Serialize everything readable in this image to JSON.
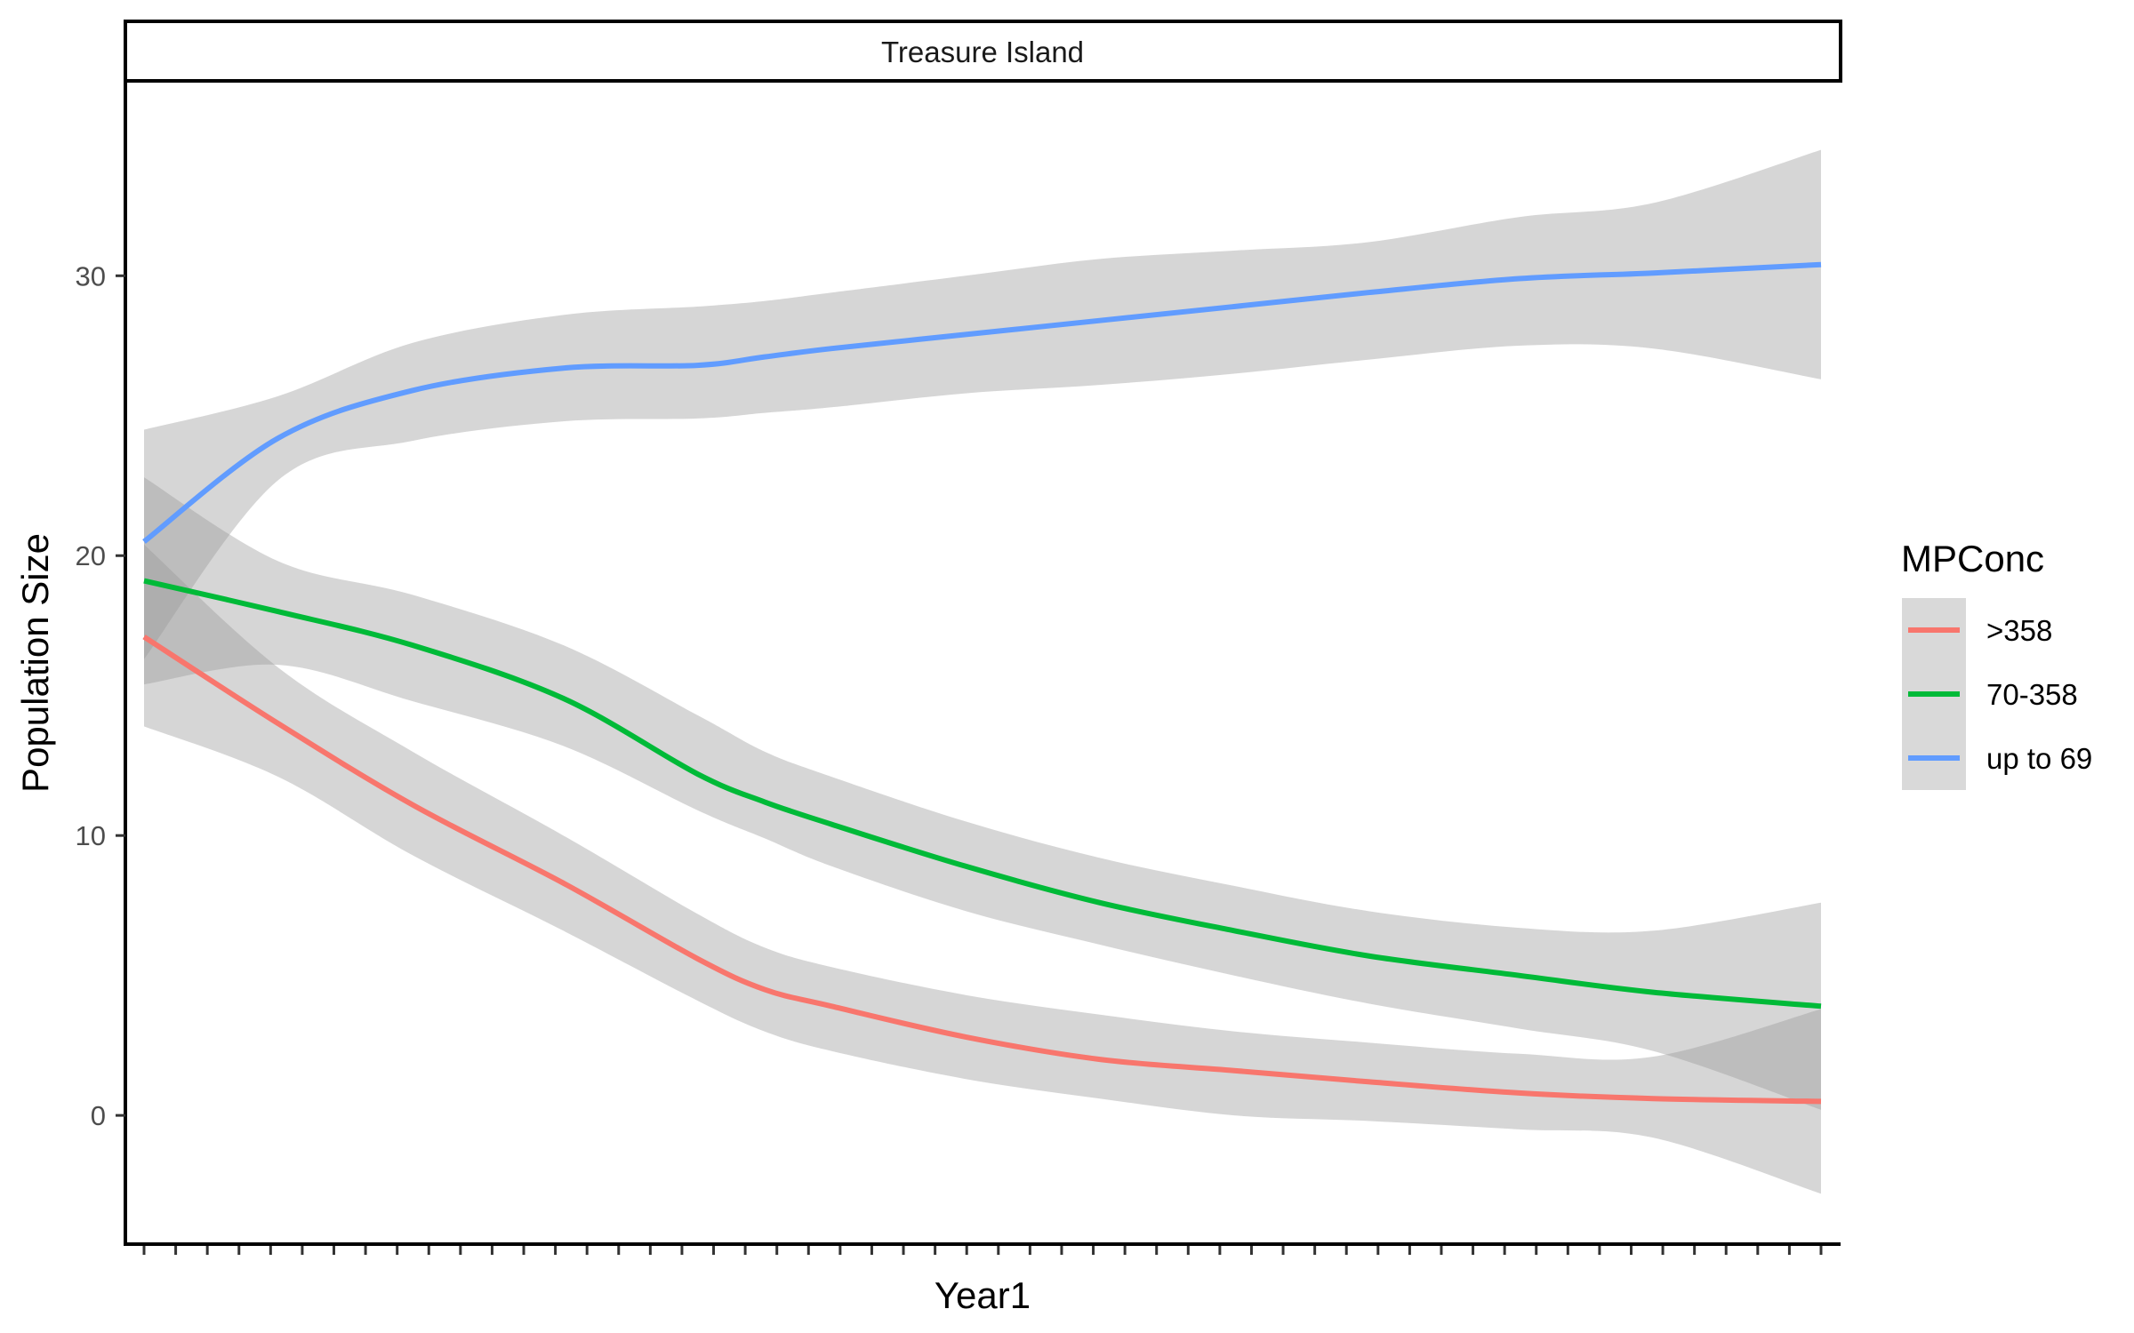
{
  "chart_data": {
    "type": "line",
    "facet_title": "Treasure Island",
    "xlabel": "Year1",
    "ylabel": "Population Size",
    "ylim": [
      -4.6,
      36.9
    ],
    "yticks": [
      0,
      10,
      20,
      30
    ],
    "x_tick_count": 54,
    "grid": false,
    "legend": {
      "title": "MPConc",
      "position": "right"
    },
    "smoothing": "loess with grey confidence band",
    "x": [
      0,
      0.08,
      0.16,
      0.25,
      0.33,
      0.37,
      0.41,
      0.49,
      0.57,
      0.65,
      0.73,
      0.82,
      0.9,
      1.0
    ],
    "series": [
      {
        "name": ">358",
        "color": "#F8766D",
        "values": [
          17.1,
          14.0,
          11.1,
          8.3,
          5.6,
          4.5,
          3.9,
          2.8,
          2.0,
          1.6,
          1.2,
          0.8,
          0.6,
          0.5
        ],
        "ci_lower": [
          13.9,
          12.1,
          9.3,
          6.6,
          4.1,
          3.0,
          2.3,
          1.3,
          0.6,
          0.0,
          -0.2,
          -0.5,
          -0.8,
          -2.8
        ],
        "ci_upper": [
          20.4,
          16.0,
          13.0,
          10.0,
          7.2,
          6.0,
          5.3,
          4.3,
          3.6,
          3.0,
          2.6,
          2.2,
          2.1,
          3.8
        ]
      },
      {
        "name": "70-358",
        "color": "#00BA38",
        "values": [
          19.1,
          18.0,
          16.8,
          14.9,
          12.2,
          11.2,
          10.4,
          8.9,
          7.6,
          6.6,
          5.7,
          5.0,
          4.4,
          3.9
        ],
        "ci_lower": [
          15.4,
          16.1,
          14.8,
          13.2,
          10.9,
          9.9,
          8.9,
          7.3,
          6.1,
          5.0,
          4.0,
          3.1,
          2.3,
          0.2
        ],
        "ci_upper": [
          22.8,
          19.8,
          18.6,
          16.8,
          14.3,
          13.0,
          12.1,
          10.5,
          9.2,
          8.2,
          7.3,
          6.7,
          6.6,
          7.6
        ]
      },
      {
        "name": "up to 69",
        "color": "#619CFF",
        "values": [
          20.5,
          24.2,
          25.9,
          26.7,
          26.8,
          27.1,
          27.4,
          27.9,
          28.4,
          28.9,
          29.4,
          29.9,
          30.1,
          30.4
        ],
        "ci_lower": [
          16.3,
          22.7,
          24.1,
          24.8,
          24.9,
          25.1,
          25.3,
          25.8,
          26.1,
          26.5,
          27.0,
          27.5,
          27.4,
          26.3
        ],
        "ci_upper": [
          24.5,
          25.7,
          27.6,
          28.6,
          28.9,
          29.1,
          29.4,
          30.0,
          30.6,
          30.9,
          31.2,
          32.1,
          32.6,
          34.5
        ]
      }
    ]
  }
}
